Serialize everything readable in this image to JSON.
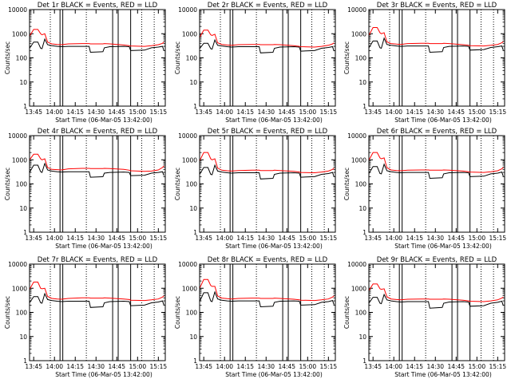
{
  "figure": {
    "x_tick_labels": [
      "13:45",
      "14:00",
      "14:15",
      "14:30",
      "14:45",
      "15:00",
      "15:15"
    ],
    "y_tick_labels": [
      "1",
      "10",
      "100",
      "1000",
      "10000"
    ],
    "ylabel": "Counts/sec",
    "xlabel": "Start Time (06-Mar-05 13:42:00)",
    "colors": {
      "events": "#000000",
      "lld": "#ff0000",
      "axes": "#000000",
      "background": "#ffffff"
    }
  },
  "chart_data": [
    {
      "type": "line",
      "title": "Det 1r BLACK = Events, RED = LLD",
      "xlabel": "Start Time (06-Mar-05 13:42:00)",
      "ylabel": "Counts/sec",
      "y_scale": "log",
      "ylim": [
        1,
        10000
      ],
      "xlim": [
        "13:42",
        "15:20"
      ],
      "x_ticks": [
        "13:45",
        "14:00",
        "14:15",
        "14:30",
        "14:45",
        "15:00",
        "15:15"
      ],
      "x": [
        "13:42",
        "13:45",
        "13:48",
        "13:50",
        "13:51",
        "13:53",
        "13:55",
        "13:58",
        "14:02",
        "14:05",
        "14:10",
        "14:20",
        "14:25",
        "14:26",
        "14:35",
        "14:36",
        "14:40",
        "14:50",
        "14:54",
        "14:55",
        "15:05",
        "15:10",
        "15:15",
        "15:18",
        "15:19"
      ],
      "series": [
        {
          "name": "Events",
          "values": [
            250,
            450,
            450,
            250,
            240,
            600,
            350,
            320,
            300,
            290,
            300,
            300,
            300,
            170,
            180,
            260,
            290,
            300,
            290,
            200,
            210,
            260,
            280,
            300,
            200
          ]
        },
        {
          "name": "LLD",
          "values": [
            800,
            1500,
            1500,
            1000,
            900,
            1000,
            450,
            380,
            360,
            350,
            380,
            390,
            390,
            380,
            380,
            390,
            380,
            340,
            320,
            310,
            300,
            320,
            350,
            400,
            450
          ]
        }
      ],
      "vlines_dotted": [
        "13:57",
        "14:23",
        "15:03",
        "15:12"
      ],
      "vlines_solid": [
        "14:04",
        "14:06",
        "14:42",
        "14:46",
        "14:55"
      ]
    },
    {
      "type": "line",
      "title": "Det 2r BLACK = Events, RED = LLD",
      "xlabel": "Start Time (06-Mar-05 13:42:00)",
      "ylabel": "Counts/sec",
      "y_scale": "log",
      "ylim": [
        1,
        10000
      ],
      "xlim": [
        "13:42",
        "15:20"
      ],
      "x_ticks": [
        "13:45",
        "14:00",
        "14:15",
        "14:30",
        "14:45",
        "15:00",
        "15:15"
      ],
      "x": [
        "13:42",
        "13:45",
        "13:48",
        "13:50",
        "13:51",
        "13:53",
        "13:55",
        "13:58",
        "14:02",
        "14:05",
        "14:10",
        "14:20",
        "14:25",
        "14:26",
        "14:35",
        "14:36",
        "14:40",
        "14:50",
        "14:54",
        "14:55",
        "15:05",
        "15:10",
        "15:15",
        "15:18",
        "15:19"
      ],
      "series": [
        {
          "name": "Events",
          "values": [
            240,
            400,
            400,
            240,
            230,
            550,
            330,
            310,
            290,
            280,
            290,
            290,
            290,
            160,
            170,
            250,
            280,
            290,
            280,
            190,
            200,
            250,
            270,
            290,
            190
          ]
        },
        {
          "name": "LLD",
          "values": [
            700,
            1400,
            1400,
            900,
            850,
            950,
            420,
            360,
            340,
            330,
            350,
            360,
            360,
            350,
            350,
            360,
            350,
            320,
            300,
            290,
            280,
            300,
            330,
            380,
            420
          ]
        }
      ],
      "vlines_dotted": [
        "13:57",
        "14:23",
        "15:03",
        "15:12"
      ],
      "vlines_solid": [
        "14:04",
        "14:06",
        "14:42",
        "14:46",
        "14:55"
      ]
    },
    {
      "type": "line",
      "title": "Det 3r BLACK = Events, RED = LLD",
      "xlabel": "Start Time (06-Mar-05 13:42:00)",
      "ylabel": "Counts/sec",
      "y_scale": "log",
      "ylim": [
        1,
        10000
      ],
      "xlim": [
        "13:42",
        "15:20"
      ],
      "x_ticks": [
        "13:45",
        "14:00",
        "14:15",
        "14:30",
        "14:45",
        "15:00",
        "15:15"
      ],
      "x": [
        "13:42",
        "13:45",
        "13:48",
        "13:50",
        "13:51",
        "13:53",
        "13:55",
        "13:58",
        "14:02",
        "14:05",
        "14:10",
        "14:20",
        "14:25",
        "14:26",
        "14:35",
        "14:36",
        "14:40",
        "14:50",
        "14:54",
        "14:55",
        "15:05",
        "15:10",
        "15:15",
        "15:18",
        "15:19"
      ],
      "series": [
        {
          "name": "Events",
          "values": [
            260,
            500,
            500,
            260,
            250,
            650,
            360,
            330,
            310,
            300,
            310,
            310,
            310,
            170,
            180,
            270,
            300,
            310,
            300,
            210,
            220,
            270,
            290,
            310,
            210
          ]
        },
        {
          "name": "LLD",
          "values": [
            850,
            1800,
            1800,
            1100,
            1000,
            1100,
            460,
            390,
            370,
            360,
            390,
            400,
            400,
            390,
            390,
            400,
            390,
            350,
            330,
            320,
            310,
            330,
            360,
            420,
            470
          ]
        }
      ],
      "vlines_dotted": [
        "13:57",
        "14:23",
        "15:03",
        "15:12"
      ],
      "vlines_solid": [
        "14:04",
        "14:06",
        "14:42",
        "14:46",
        "14:55"
      ]
    },
    {
      "type": "line",
      "title": "Det 4r BLACK = Events, RED = LLD",
      "xlabel": "Start Time (06-Mar-05 13:42:00)",
      "ylabel": "Counts/sec",
      "y_scale": "log",
      "ylim": [
        1,
        10000
      ],
      "xlim": [
        "13:42",
        "15:20"
      ],
      "x_ticks": [
        "13:45",
        "14:00",
        "14:15",
        "14:30",
        "14:45",
        "15:00",
        "15:15"
      ],
      "x": [
        "13:42",
        "13:45",
        "13:48",
        "13:50",
        "13:51",
        "13:53",
        "13:55",
        "13:58",
        "14:02",
        "14:05",
        "14:10",
        "14:20",
        "14:25",
        "14:26",
        "14:35",
        "14:36",
        "14:40",
        "14:50",
        "14:54",
        "14:55",
        "15:05",
        "15:10",
        "15:15",
        "15:18",
        "15:19"
      ],
      "series": [
        {
          "name": "Events",
          "values": [
            300,
            600,
            600,
            320,
            300,
            700,
            380,
            340,
            320,
            310,
            320,
            320,
            320,
            190,
            200,
            280,
            300,
            310,
            300,
            220,
            230,
            280,
            300,
            320,
            220
          ]
        },
        {
          "name": "LLD",
          "values": [
            1000,
            1700,
            1700,
            1100,
            1000,
            1100,
            480,
            400,
            390,
            380,
            420,
            440,
            440,
            430,
            430,
            440,
            430,
            400,
            370,
            350,
            330,
            340,
            380,
            480,
            550
          ]
        }
      ],
      "vlines_dotted": [
        "13:57",
        "14:23",
        "15:03",
        "15:12"
      ],
      "vlines_solid": [
        "14:04",
        "14:06",
        "14:42",
        "14:46",
        "14:55"
      ]
    },
    {
      "type": "line",
      "title": "Det 5r BLACK = Events, RED = LLD",
      "xlabel": "Start Time (06-Mar-05 13:42:00)",
      "ylabel": "Counts/sec",
      "y_scale": "log",
      "ylim": [
        1,
        10000
      ],
      "xlim": [
        "13:42",
        "15:20"
      ],
      "x_ticks": [
        "13:45",
        "14:00",
        "14:15",
        "14:30",
        "14:45",
        "15:00",
        "15:15"
      ],
      "x": [
        "13:42",
        "13:45",
        "13:48",
        "13:50",
        "13:51",
        "13:53",
        "13:55",
        "13:58",
        "14:02",
        "14:05",
        "14:10",
        "14:20",
        "14:25",
        "14:26",
        "14:35",
        "14:36",
        "14:40",
        "14:50",
        "14:54",
        "14:55",
        "15:05",
        "15:10",
        "15:15",
        "15:18",
        "15:19"
      ],
      "series": [
        {
          "name": "Events",
          "values": [
            250,
            480,
            480,
            250,
            240,
            600,
            340,
            310,
            290,
            280,
            290,
            290,
            290,
            160,
            170,
            250,
            280,
            290,
            280,
            190,
            200,
            250,
            270,
            300,
            200
          ]
        },
        {
          "name": "LLD",
          "values": [
            900,
            2000,
            2000,
            1100,
            1000,
            1100,
            450,
            370,
            350,
            340,
            360,
            370,
            370,
            360,
            360,
            370,
            360,
            330,
            310,
            300,
            290,
            310,
            340,
            400,
            450
          ]
        }
      ],
      "vlines_dotted": [
        "13:57",
        "14:23",
        "15:03",
        "15:12"
      ],
      "vlines_solid": [
        "14:04",
        "14:06",
        "14:42",
        "14:46",
        "14:55"
      ]
    },
    {
      "type": "line",
      "title": "Det 6r BLACK = Events, RED = LLD",
      "xlabel": "Start Time (06-Mar-05 13:42:00)",
      "ylabel": "Counts/sec",
      "y_scale": "log",
      "ylim": [
        1,
        10000
      ],
      "xlim": [
        "13:42",
        "15:20"
      ],
      "x_ticks": [
        "13:45",
        "14:00",
        "14:15",
        "14:30",
        "14:45",
        "15:00",
        "15:15"
      ],
      "x": [
        "13:42",
        "13:45",
        "13:48",
        "13:50",
        "13:51",
        "13:53",
        "13:55",
        "13:58",
        "14:02",
        "14:05",
        "14:10",
        "14:20",
        "14:25",
        "14:26",
        "14:35",
        "14:36",
        "14:40",
        "14:50",
        "14:54",
        "14:55",
        "15:05",
        "15:10",
        "15:15",
        "15:18",
        "15:19"
      ],
      "series": [
        {
          "name": "Events",
          "values": [
            270,
            520,
            520,
            270,
            260,
            650,
            350,
            320,
            300,
            290,
            300,
            300,
            300,
            170,
            180,
            260,
            290,
            300,
            290,
            200,
            210,
            260,
            280,
            310,
            210
          ]
        },
        {
          "name": "LLD",
          "values": [
            950,
            2000,
            2000,
            1200,
            1100,
            1200,
            470,
            380,
            360,
            350,
            370,
            380,
            380,
            370,
            370,
            380,
            370,
            340,
            320,
            310,
            300,
            320,
            350,
            420,
            480
          ]
        }
      ],
      "vlines_dotted": [
        "13:57",
        "14:23",
        "15:03",
        "15:12"
      ],
      "vlines_solid": [
        "14:04",
        "14:06",
        "14:42",
        "14:46",
        "14:55"
      ]
    },
    {
      "type": "line",
      "title": "Det 7r BLACK = Events, RED = LLD",
      "xlabel": "Start Time (06-Mar-05 13:42:00)",
      "ylabel": "Counts/sec",
      "y_scale": "log",
      "ylim": [
        1,
        10000
      ],
      "xlim": [
        "13:42",
        "15:20"
      ],
      "x_ticks": [
        "13:45",
        "14:00",
        "14:15",
        "14:30",
        "14:45",
        "15:00",
        "15:15"
      ],
      "x": [
        "13:42",
        "13:45",
        "13:48",
        "13:50",
        "13:51",
        "13:53",
        "13:55",
        "13:58",
        "14:02",
        "14:05",
        "14:10",
        "14:20",
        "14:25",
        "14:26",
        "14:35",
        "14:36",
        "14:40",
        "14:50",
        "14:54",
        "14:55",
        "15:05",
        "15:10",
        "15:15",
        "15:18",
        "15:19"
      ],
      "series": [
        {
          "name": "Events",
          "values": [
            250,
            450,
            450,
            250,
            240,
            600,
            340,
            310,
            290,
            280,
            290,
            290,
            290,
            160,
            170,
            250,
            280,
            290,
            280,
            190,
            200,
            250,
            270,
            300,
            200
          ]
        },
        {
          "name": "LLD",
          "values": [
            900,
            1800,
            1800,
            1000,
            950,
            1000,
            460,
            380,
            360,
            350,
            380,
            400,
            400,
            390,
            390,
            400,
            390,
            360,
            340,
            320,
            310,
            330,
            360,
            430,
            480
          ]
        }
      ],
      "vlines_dotted": [
        "13:57",
        "14:23",
        "15:03",
        "15:12"
      ],
      "vlines_solid": [
        "14:04",
        "14:06",
        "14:42",
        "14:46",
        "14:55"
      ]
    },
    {
      "type": "line",
      "title": "Det 8r BLACK = Events, RED = LLD",
      "xlabel": "Start Time (06-Mar-05 13:42:00)",
      "ylabel": "Counts/sec",
      "y_scale": "log",
      "ylim": [
        1,
        10000
      ],
      "xlim": [
        "13:42",
        "15:20"
      ],
      "x_ticks": [
        "13:45",
        "14:00",
        "14:15",
        "14:30",
        "14:45",
        "15:00",
        "15:15"
      ],
      "x": [
        "13:42",
        "13:45",
        "13:48",
        "13:50",
        "13:51",
        "13:53",
        "13:55",
        "13:58",
        "14:02",
        "14:05",
        "14:10",
        "14:20",
        "14:25",
        "14:26",
        "14:35",
        "14:36",
        "14:40",
        "14:50",
        "14:54",
        "14:55",
        "15:05",
        "15:10",
        "15:15",
        "15:18",
        "15:19"
      ],
      "series": [
        {
          "name": "Events",
          "values": [
            280,
            650,
            650,
            300,
            280,
            700,
            360,
            320,
            300,
            290,
            300,
            300,
            300,
            170,
            180,
            260,
            290,
            300,
            290,
            200,
            210,
            260,
            280,
            310,
            210
          ]
        },
        {
          "name": "LLD",
          "values": [
            1000,
            2300,
            2300,
            1300,
            1200,
            1200,
            480,
            390,
            370,
            360,
            380,
            390,
            390,
            380,
            380,
            390,
            380,
            350,
            330,
            320,
            310,
            330,
            360,
            430,
            480
          ]
        }
      ],
      "vlines_dotted": [
        "13:57",
        "14:23",
        "15:03",
        "15:12"
      ],
      "vlines_solid": [
        "14:04",
        "14:06",
        "14:42",
        "14:46",
        "14:55"
      ]
    },
    {
      "type": "line",
      "title": "Det 9r BLACK = Events, RED = LLD",
      "xlabel": "Start Time (06-Mar-05 13:42:00)",
      "ylabel": "Counts/sec",
      "y_scale": "log",
      "ylim": [
        1,
        10000
      ],
      "xlim": [
        "13:42",
        "15:20"
      ],
      "x_ticks": [
        "13:45",
        "14:00",
        "14:15",
        "14:30",
        "14:45",
        "15:00",
        "15:15"
      ],
      "x": [
        "13:42",
        "13:45",
        "13:48",
        "13:50",
        "13:51",
        "13:53",
        "13:55",
        "13:58",
        "14:02",
        "14:05",
        "14:10",
        "14:20",
        "14:25",
        "14:26",
        "14:35",
        "14:36",
        "14:40",
        "14:50",
        "14:54",
        "14:55",
        "15:05",
        "15:10",
        "15:15",
        "15:18",
        "15:19"
      ],
      "series": [
        {
          "name": "Events",
          "values": [
            240,
            420,
            420,
            240,
            230,
            550,
            330,
            300,
            280,
            270,
            280,
            280,
            280,
            150,
            160,
            240,
            270,
            280,
            270,
            180,
            190,
            240,
            260,
            290,
            190
          ]
        },
        {
          "name": "LLD",
          "values": [
            800,
            1500,
            1500,
            950,
            900,
            950,
            440,
            360,
            340,
            330,
            350,
            360,
            360,
            350,
            350,
            360,
            350,
            320,
            300,
            290,
            280,
            300,
            330,
            390,
            430
          ]
        }
      ],
      "vlines_dotted": [
        "13:57",
        "14:23",
        "15:03",
        "15:12"
      ],
      "vlines_solid": [
        "14:04",
        "14:06",
        "14:42",
        "14:46",
        "14:55"
      ]
    }
  ]
}
